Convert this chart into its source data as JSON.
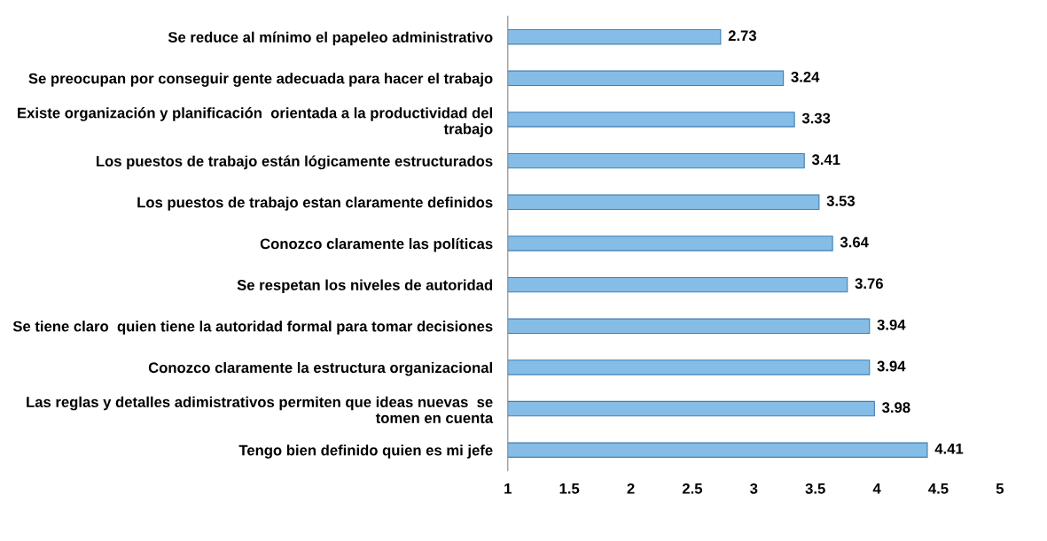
{
  "chart_data": {
    "type": "bar",
    "orientation": "horizontal",
    "categories": [
      "Se reduce al mínimo el papeleo administrativo",
      "Se preocupan por conseguir gente adecuada para hacer el trabajo",
      "Existe organización y planificación  orientada a la productividad del\ntrabajo",
      "Los puestos de trabajo están lógicamente estructurados",
      "Los puestos de trabajo estan claramente definidos",
      "Conozco claramente las políticas",
      "Se respetan los niveles de autoridad",
      "Se tiene claro  quien tiene la autoridad formal para tomar decisiones",
      "Conozco claramente la estructura organizacional",
      "Las reglas y detalles adimistrativos permiten que ideas nuevas  se\ntomen en cuenta",
      "Tengo bien definido quien es mi jefe"
    ],
    "values": [
      2.73,
      3.24,
      3.33,
      3.41,
      3.53,
      3.64,
      3.76,
      3.94,
      3.94,
      3.98,
      4.41
    ],
    "color": "#86bde6",
    "data_labels": true,
    "grid": false,
    "legend": false,
    "xlim": [
      1,
      5
    ],
    "xticks": [
      1,
      1.5,
      2,
      2.5,
      3,
      3.5,
      4,
      4.5,
      5
    ]
  }
}
